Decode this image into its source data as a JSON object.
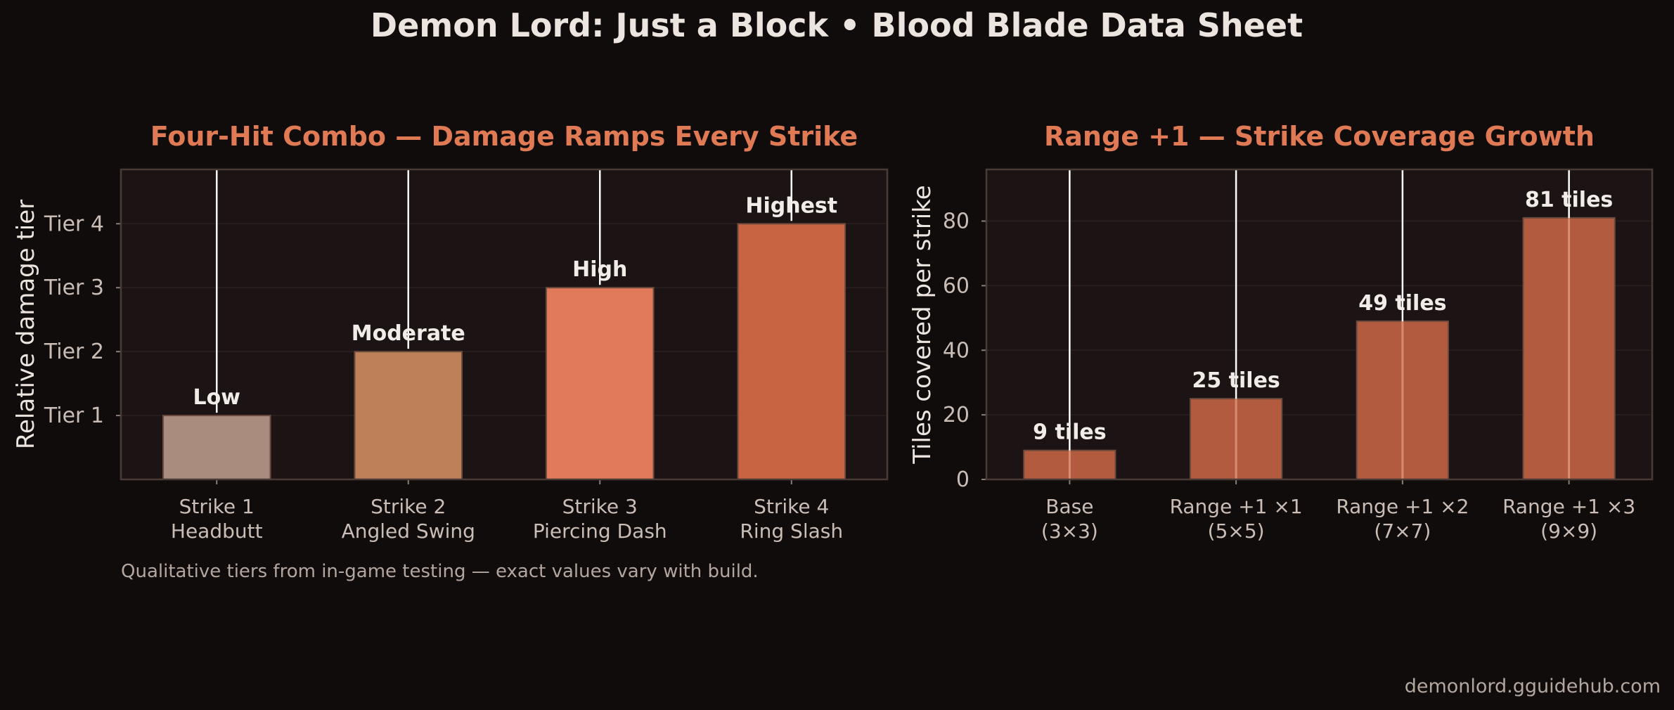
{
  "suptitle": "Demon Lord: Just a Block  •  Blood Blade Data Sheet",
  "source": "demonlord.gguidehub.com",
  "chart_data": [
    {
      "type": "bar",
      "title": "Four-Hit Combo — Damage Ramps Every Strike",
      "title_color": "#e07a55",
      "ylabel": "Relative damage tier",
      "categories": [
        [
          "Strike 1",
          "Headbutt"
        ],
        [
          "Strike 2",
          "Angled Swing"
        ],
        [
          "Strike 3",
          "Piercing Dash"
        ],
        [
          "Strike 4",
          "Ring Slash"
        ]
      ],
      "values": [
        1,
        2,
        3,
        4
      ],
      "value_labels": [
        "Low",
        "Moderate",
        "High",
        "Highest"
      ],
      "bar_colors": [
        "#a98c7e",
        "#bd8059",
        "#e07a5a",
        "#c96442"
      ],
      "ylim": [
        0,
        4.85
      ],
      "yticks": [
        1,
        2,
        3,
        4
      ],
      "ytick_labels": [
        "Tier 1",
        "Tier 2",
        "Tier 3",
        "Tier 4"
      ],
      "grid": true,
      "caption": "Qualitative tiers from in-game testing — exact values vary with build."
    },
    {
      "type": "bar",
      "title": "Range +1 — Strike Coverage Growth",
      "title_color": "#e07a55",
      "ylabel": "Tiles covered per strike",
      "categories": [
        [
          "Base",
          "(3×3)"
        ],
        [
          "Range +1 ×1",
          "(5×5)"
        ],
        [
          "Range +1 ×2",
          "(7×7)"
        ],
        [
          "Range +1 ×3",
          "(9×9)"
        ]
      ],
      "values": [
        9,
        25,
        49,
        81
      ],
      "value_labels": [
        "9 tiles",
        "25 tiles",
        "49 tiles",
        "81 tiles"
      ],
      "bar_colors": [
        "#b35b3e",
        "#b35b3e",
        "#b35b3e",
        "#b35b3e"
      ],
      "ylim": [
        0,
        96
      ],
      "yticks": [
        0,
        20,
        40,
        60,
        80
      ],
      "ytick_labels": [
        "0",
        "20",
        "40",
        "60",
        "80"
      ],
      "grid": true
    }
  ]
}
